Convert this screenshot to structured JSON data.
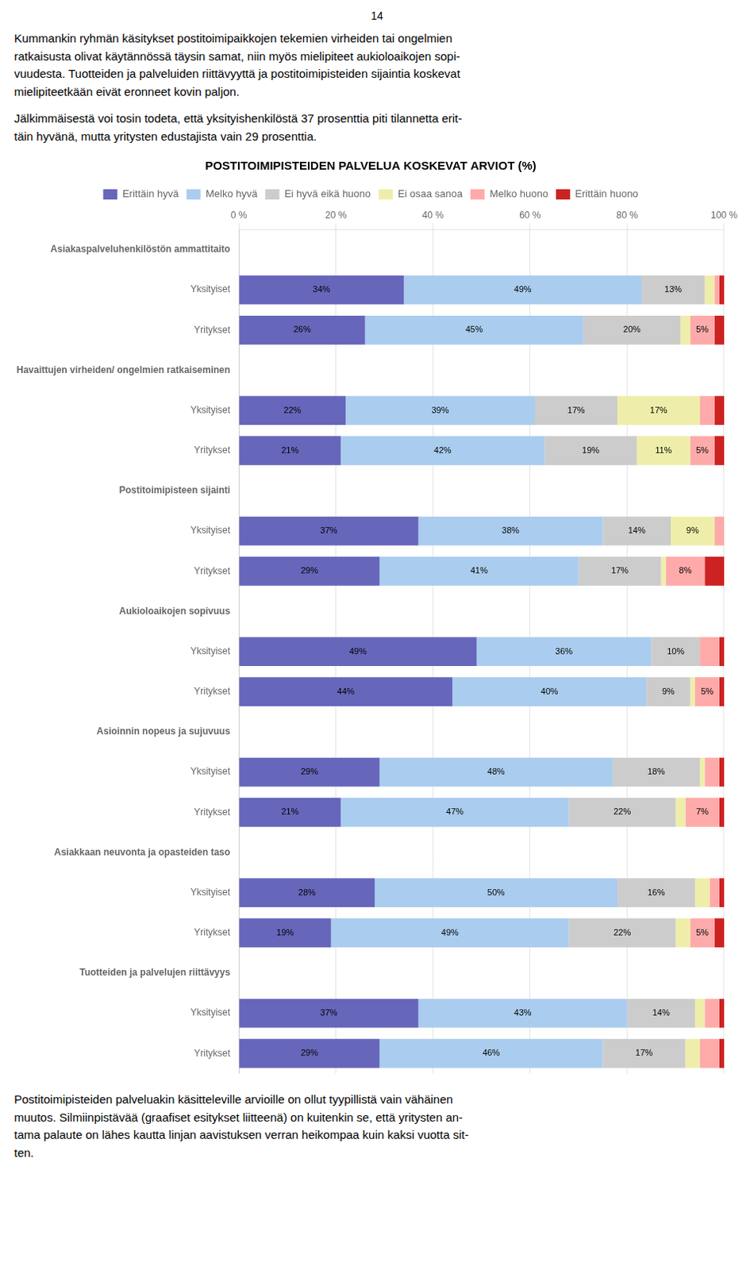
{
  "chart_data": {
    "type": "bar",
    "title": "POSTITOIMIPISTEIDEN PALVELUA KOSKEVAT ARVIOT (%)",
    "annotations": [
      "14",
      "Kummankin ryhmän käsitykset postitoimipaikkojen tekemien virheiden tai ongelmien\nratkaisusta olivat käytännössä täysin samat, niin myös mielipiteet aukioloaikojen sopi-\nvuudesta. Tuotteiden ja palveluiden riittävyyttä ja postitoimipisteiden sijaintia koskevat\nmielipiteetkään eivät eronneet kovin paljon.",
      "Jälkimmäisestä voi tosin todeta, että yksityishenkilöstä 37 prosenttia piti tilannetta erit-\ntäin hyvänä, mutta yritysten edustajista vain 29 prosenttia.",
      "Postitoimipisteiden palveluakin käsitteleville arvioille on ollut tyypillistä vain vähäinen\nmuutos. Silmiinpistävää (graafiset esitykset liitteenä) on kuitenkin se, että yritysten an-\ntama palaute on lähes kautta linjan aavistuksen verran heikompaa kuin kaksi vuotta sit-\nten."
    ],
    "orientation": "horizontal",
    "stacked": true,
    "data_labels": true,
    "grid": true,
    "legend": "top",
    "categories": [
      "Asiakaspalveluhenkilöstön ammattitaito",
      "Yksityiset",
      "Yritykset",
      "Havaittujen virheiden/ ongelmien ratkaiseminen",
      "Yksityiset",
      "Yritykset",
      "Postitoimipisteen sijainti",
      "Yksityiset",
      "Yritykset",
      "Aukioloaikojen sopivuus",
      "Yksityiset",
      "Yritykset",
      "Asioinnin nopeus ja sujuvuus",
      "Yksityiset",
      "Yritykset",
      "Asiakkaan neuvonta ja opasteiden taso",
      "Yksityiset",
      "Yritykset",
      "Tuotteiden ja palvelujen riittävyys",
      "Yksityiset",
      "Yritykset"
    ],
    "series": [
      {
        "name": "Erittäin hyvä",
        "color": "#6666bb",
        "values": [
          null,
          34,
          26,
          null,
          22,
          21,
          null,
          37,
          29,
          null,
          49,
          44,
          null,
          29,
          21,
          null,
          28,
          19,
          null,
          37,
          29
        ],
        "value_labels": [
          null,
          "34%",
          "26%",
          null,
          "22%",
          "21%",
          null,
          "37%",
          "29%",
          null,
          "49%",
          "44%",
          null,
          "29%",
          "21%",
          null,
          "28%",
          "19%",
          null,
          "37%",
          "29%"
        ]
      },
      {
        "name": "Melko hyvä",
        "color": "#aaccee",
        "values": [
          null,
          49,
          45,
          null,
          39,
          42,
          null,
          38,
          41,
          null,
          36,
          40,
          null,
          48,
          47,
          null,
          50,
          49,
          null,
          43,
          46
        ],
        "value_labels": [
          null,
          "49%",
          "45%",
          null,
          "39%",
          "42%",
          null,
          "38%",
          "41%",
          null,
          "36%",
          "40%",
          null,
          "48%",
          "47%",
          null,
          "50%",
          "49%",
          null,
          "43%",
          "46%"
        ]
      },
      {
        "name": "Ei hyvä eikä huono",
        "color": "#cccccc",
        "values": [
          null,
          13,
          20,
          null,
          17,
          19,
          null,
          14,
          17,
          null,
          10,
          9,
          null,
          18,
          22,
          null,
          16,
          22,
          null,
          14,
          17
        ],
        "value_labels": [
          null,
          "13%",
          "20%",
          null,
          "17%",
          "19%",
          null,
          "14%",
          "17%",
          null,
          "10%",
          "9%",
          null,
          "18%",
          "22%",
          null,
          "16%",
          "22%",
          null,
          "14%",
          "17%"
        ]
      },
      {
        "name": "Ei osaa sanoa",
        "color": "#eeeeaa",
        "values": [
          null,
          2,
          2,
          null,
          17,
          11,
          null,
          9,
          1,
          null,
          0,
          1,
          null,
          1,
          2,
          null,
          3,
          3,
          null,
          2,
          3
        ],
        "value_labels": [
          null,
          null,
          null,
          null,
          "17%",
          "11%",
          null,
          "9%",
          null,
          null,
          null,
          null,
          null,
          null,
          null,
          null,
          null,
          null,
          null,
          null,
          null
        ]
      },
      {
        "name": "Melko huono",
        "color": "#ffaaaa",
        "values": [
          null,
          1,
          5,
          null,
          3,
          5,
          null,
          2,
          8,
          null,
          4,
          5,
          null,
          3,
          7,
          null,
          2,
          5,
          null,
          3,
          4
        ],
        "value_labels": [
          null,
          null,
          "5%",
          null,
          null,
          "5%",
          null,
          null,
          "8%",
          null,
          null,
          "5%",
          null,
          null,
          "7%",
          null,
          null,
          "5%",
          null,
          null,
          null
        ]
      },
      {
        "name": "Erittäin huono",
        "color": "#cc2222",
        "values": [
          null,
          1,
          2,
          null,
          2,
          2,
          null,
          0,
          4,
          null,
          1,
          1,
          null,
          1,
          1,
          null,
          1,
          2,
          null,
          1,
          1
        ],
        "value_labels": [
          null,
          null,
          null,
          null,
          null,
          null,
          null,
          null,
          null,
          null,
          null,
          null,
          null,
          null,
          null,
          null,
          null,
          null,
          null,
          null,
          null
        ]
      }
    ],
    "xlim": [
      0,
      100
    ],
    "xticks": [
      {
        "value": 0,
        "label": "0 %"
      },
      {
        "value": 20,
        "label": "20 %"
      },
      {
        "value": 40,
        "label": "40 %"
      },
      {
        "value": 60,
        "label": "60 %"
      },
      {
        "value": 80,
        "label": "80 %"
      },
      {
        "value": 100,
        "label": "100 %"
      }
    ]
  }
}
